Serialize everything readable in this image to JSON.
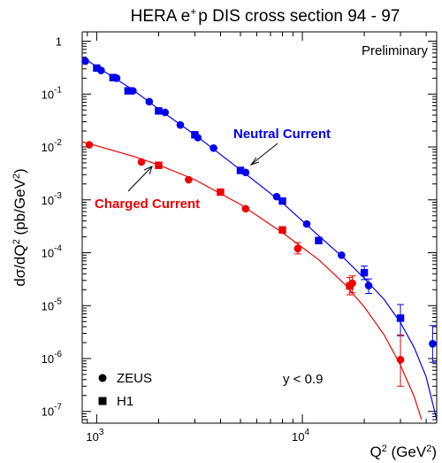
{
  "chart_data": {
    "type": "scatter",
    "title": {
      "main": "HERA e",
      "sup": "+",
      "rest": "p DIS cross section 94 - 97"
    },
    "ylabel": {
      "t1": "dσ/dQ",
      "s1": "2",
      "t2": " (pb/GeV",
      "s2": "2",
      "t3": ")"
    },
    "xlabel": {
      "t1": "Q",
      "s1": "2",
      "t2": " (GeV",
      "s2": "2",
      "t3": ")"
    },
    "preliminary_label": "Preliminary",
    "cut_label": "y < 0.9",
    "xscale": "log",
    "yscale": "log",
    "xlim": [
      850,
      45000
    ],
    "ylim": [
      6e-08,
      1.5
    ],
    "xticks": [
      {
        "value": 1000,
        "base": "10",
        "exp": "3"
      },
      {
        "value": 10000,
        "base": "10",
        "exp": "4"
      }
    ],
    "yticks": [
      {
        "value": 1,
        "base": "1",
        "exp": ""
      },
      {
        "value": 0.1,
        "base": "10",
        "exp": "-1"
      },
      {
        "value": 0.01,
        "base": "10",
        "exp": "-2"
      },
      {
        "value": 0.001,
        "base": "10",
        "exp": "-3"
      },
      {
        "value": 0.0001,
        "base": "10",
        "exp": "-4"
      },
      {
        "value": 1e-05,
        "base": "10",
        "exp": "-5"
      },
      {
        "value": 1e-06,
        "base": "10",
        "exp": "-6"
      },
      {
        "value": 1e-07,
        "base": "10",
        "exp": "-7"
      }
    ],
    "colors": {
      "nc": "#0000ee",
      "cc": "#ee0000",
      "axis": "#000000"
    },
    "curve_labels": {
      "nc": "Neutral Current",
      "cc": "Charged Current"
    },
    "legend": [
      {
        "label": "ZEUS",
        "marker": "circle"
      },
      {
        "label": "H1",
        "marker": "square"
      }
    ],
    "series": [
      {
        "key": "nc_zeus",
        "group": "nc",
        "marker": "circle",
        "points": [
          {
            "x": 880,
            "y": 0.42
          },
          {
            "x": 1050,
            "y": 0.28
          },
          {
            "x": 1250,
            "y": 0.2
          },
          {
            "x": 1500,
            "y": 0.115
          },
          {
            "x": 1800,
            "y": 0.072
          },
          {
            "x": 2150,
            "y": 0.045
          },
          {
            "x": 2550,
            "y": 0.026
          },
          {
            "x": 3100,
            "y": 0.015
          },
          {
            "x": 3700,
            "y": 0.0095
          },
          {
            "x": 5300,
            "y": 0.0033
          },
          {
            "x": 7500,
            "y": 0.00115
          },
          {
            "x": 10500,
            "y": 0.00035
          },
          {
            "x": 15500,
            "y": 9e-05
          },
          {
            "x": 21000,
            "y": 2.4e-05,
            "err": [
              1.7e-05,
              3.2e-05
            ]
          },
          {
            "x": 43000,
            "y": 1.9e-06,
            "err": [
              8.5e-07,
              4.2e-06
            ]
          }
        ]
      },
      {
        "key": "nc_h1",
        "group": "nc",
        "marker": "square",
        "points": [
          {
            "x": 1000,
            "y": 0.31
          },
          {
            "x": 1200,
            "y": 0.205
          },
          {
            "x": 1420,
            "y": 0.115
          },
          {
            "x": 2000,
            "y": 0.048
          },
          {
            "x": 3000,
            "y": 0.017
          },
          {
            "x": 5000,
            "y": 0.0036
          },
          {
            "x": 8000,
            "y": 0.00095
          },
          {
            "x": 12000,
            "y": 0.00017
          },
          {
            "x": 20000,
            "y": 4.2e-05,
            "err": [
              3.1e-05,
              5.6e-05
            ]
          },
          {
            "x": 30000,
            "y": 5.8e-06,
            "err": [
              2.7e-06,
              1.05e-05
            ]
          }
        ]
      },
      {
        "key": "cc_zeus",
        "group": "cc",
        "marker": "circle",
        "points": [
          {
            "x": 920,
            "y": 0.011
          },
          {
            "x": 1650,
            "y": 0.0052
          },
          {
            "x": 2800,
            "y": 0.0024
          },
          {
            "x": 5300,
            "y": 0.00068
          },
          {
            "x": 9500,
            "y": 0.00012,
            "err": [
              9.5e-05,
              0.000155
            ]
          },
          {
            "x": 17500,
            "y": 2.65e-05,
            "err": [
              1.75e-05,
              3.65e-05
            ]
          },
          {
            "x": 30000,
            "y": 9.5e-07,
            "err": [
              3e-07,
              2.8e-06
            ]
          }
        ]
      },
      {
        "key": "cc_h1",
        "group": "cc",
        "marker": "square",
        "points": [
          {
            "x": 2000,
            "y": 0.0045
          },
          {
            "x": 4000,
            "y": 0.0014
          },
          {
            "x": 8000,
            "y": 0.00027
          },
          {
            "x": 17000,
            "y": 2.35e-05,
            "err": [
              1.6e-05,
              3.4e-05
            ]
          }
        ]
      }
    ],
    "theory_curves": [
      {
        "key": "nc",
        "points": [
          {
            "x": 850,
            "y": 0.5
          },
          {
            "x": 1000,
            "y": 0.33
          },
          {
            "x": 1500,
            "y": 0.12
          },
          {
            "x": 2000,
            "y": 0.052
          },
          {
            "x": 3000,
            "y": 0.017
          },
          {
            "x": 5000,
            "y": 0.0037
          },
          {
            "x": 8000,
            "y": 0.00088
          },
          {
            "x": 12000,
            "y": 0.00021
          },
          {
            "x": 16000,
            "y": 7.8e-05
          },
          {
            "x": 20000,
            "y": 3.3e-05
          },
          {
            "x": 25000,
            "y": 1.3e-05
          },
          {
            "x": 30000,
            "y": 4.8e-06
          },
          {
            "x": 35000,
            "y": 1.6e-06
          },
          {
            "x": 40000,
            "y": 4.5e-07
          },
          {
            "x": 45000,
            "y": 7e-08
          }
        ]
      },
      {
        "key": "cc",
        "points": [
          {
            "x": 850,
            "y": 0.0125
          },
          {
            "x": 1000,
            "y": 0.0105
          },
          {
            "x": 1500,
            "y": 0.0067
          },
          {
            "x": 2000,
            "y": 0.0046
          },
          {
            "x": 3000,
            "y": 0.0024
          },
          {
            "x": 5000,
            "y": 0.00082
          },
          {
            "x": 8000,
            "y": 0.00024
          },
          {
            "x": 12000,
            "y": 7.4e-05
          },
          {
            "x": 16000,
            "y": 2.6e-05
          },
          {
            "x": 20000,
            "y": 9.5e-06
          },
          {
            "x": 25000,
            "y": 2.8e-06
          },
          {
            "x": 30000,
            "y": 7.5e-07
          },
          {
            "x": 35000,
            "y": 1.9e-07
          },
          {
            "x": 38000,
            "y": 7e-08
          }
        ]
      }
    ]
  }
}
